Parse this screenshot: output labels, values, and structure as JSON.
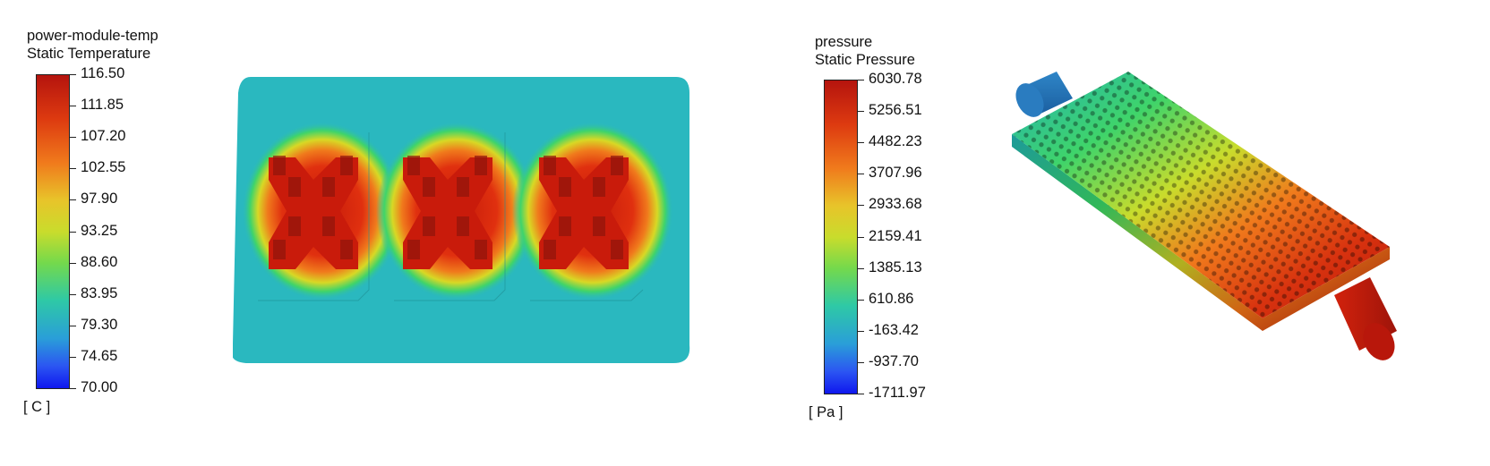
{
  "temperature_legend": {
    "line1": "power-module-temp",
    "line2": "Static Temperature",
    "ticks": [
      "116.50",
      "111.85",
      "107.20",
      "102.55",
      "97.90",
      "93.25",
      "88.60",
      "83.95",
      "79.30",
      "74.65",
      "70.00"
    ],
    "unit": "[ C ]"
  },
  "pressure_legend": {
    "line1": "pressure",
    "line2": "Static Pressure",
    "ticks": [
      "6030.78",
      "5256.51",
      "4482.23",
      "3707.96",
      "2933.68",
      "2159.41",
      "1385.13",
      "610.86",
      "-163.42",
      "-937.70",
      "-1711.97"
    ],
    "unit": "[ Pa ]"
  },
  "colors": {
    "red": "#c41a0a",
    "orange": "#f07a1c",
    "yellow": "#d8d825",
    "green": "#3fd46a",
    "cyan": "#29b7c1",
    "blue": "#1a4ef6"
  }
}
